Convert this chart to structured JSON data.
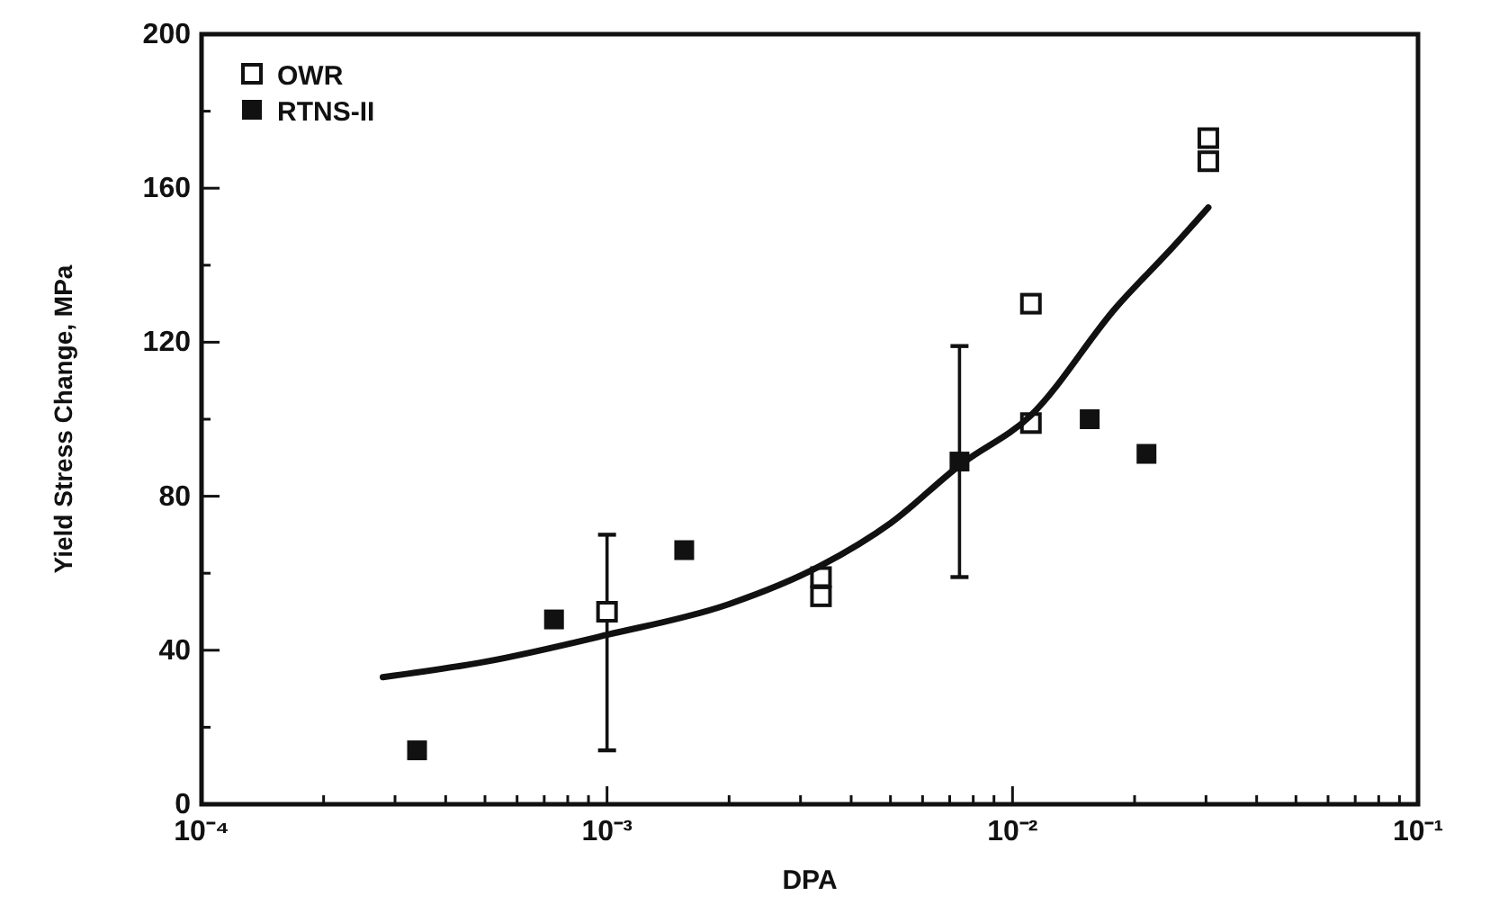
{
  "chart_data": {
    "type": "scatter",
    "xlabel": "DPA",
    "ylabel": "Yield Stress Change, MPa",
    "log": "x",
    "xlim": [
      0.0001,
      0.1
    ],
    "ylim": [
      0,
      200
    ],
    "xticks": [
      {
        "value": 0.0001,
        "label": "10⁻⁴"
      },
      {
        "value": 0.0002,
        "label": null
      },
      {
        "value": 0.0003,
        "label": null
      },
      {
        "value": 0.0004,
        "label": null
      },
      {
        "value": 0.0005,
        "label": null
      },
      {
        "value": 0.0006,
        "label": null
      },
      {
        "value": 0.0007,
        "label": null
      },
      {
        "value": 0.0008,
        "label": null
      },
      {
        "value": 0.0009,
        "label": null
      },
      {
        "value": 0.001,
        "label": "10⁻³"
      },
      {
        "value": 0.002,
        "label": null
      },
      {
        "value": 0.003,
        "label": null
      },
      {
        "value": 0.004,
        "label": null
      },
      {
        "value": 0.005,
        "label": null
      },
      {
        "value": 0.006,
        "label": null
      },
      {
        "value": 0.007,
        "label": null
      },
      {
        "value": 0.008,
        "label": null
      },
      {
        "value": 0.009,
        "label": null
      },
      {
        "value": 0.01,
        "label": "10⁻²"
      },
      {
        "value": 0.02,
        "label": null
      },
      {
        "value": 0.03,
        "label": null
      },
      {
        "value": 0.04,
        "label": null
      },
      {
        "value": 0.05,
        "label": null
      },
      {
        "value": 0.06,
        "label": null
      },
      {
        "value": 0.07,
        "label": null
      },
      {
        "value": 0.08,
        "label": null
      },
      {
        "value": 0.09,
        "label": null
      },
      {
        "value": 0.1,
        "label": "10⁻¹"
      }
    ],
    "yticks": [
      0,
      {
        "value": 20,
        "label": null
      },
      40,
      {
        "value": 60,
        "label": null
      },
      80,
      {
        "value": 100,
        "label": null
      },
      120,
      {
        "value": 140,
        "label": null
      },
      160,
      {
        "value": 180,
        "label": null
      },
      200
    ],
    "grid": false,
    "legend": "top left",
    "series": [
      {
        "name": "OWR",
        "color": "#111111",
        "marker": "square-open",
        "x": [
          0.001,
          0.00337,
          0.00337,
          0.0111,
          0.0111,
          0.0304,
          0.0304
        ],
        "values": [
          50,
          54,
          59,
          130,
          99,
          173,
          167
        ],
        "errors": [
          [
            14,
            70
          ],
          null,
          null,
          null,
          null,
          null,
          null
        ]
      },
      {
        "name": "RTNS-II",
        "color": "#111111",
        "marker": "square",
        "x": [
          0.00034,
          0.00074,
          0.00155,
          0.0074,
          0.0155,
          0.0214
        ],
        "values": [
          14,
          48,
          66,
          89,
          100,
          91
        ],
        "errors": [
          null,
          null,
          null,
          [
            59,
            119
          ],
          null,
          null
        ]
      },
      {
        "type": "line",
        "color": "#111111",
        "marker": "none",
        "x": [
          0.00028,
          0.0005,
          0.001,
          0.002,
          0.00337,
          0.005,
          0.0074,
          0.0111,
          0.018,
          0.025,
          0.0304
        ],
        "values": [
          33,
          37,
          44,
          52,
          62,
          73,
          88,
          101,
          129,
          145,
          155
        ]
      }
    ]
  }
}
